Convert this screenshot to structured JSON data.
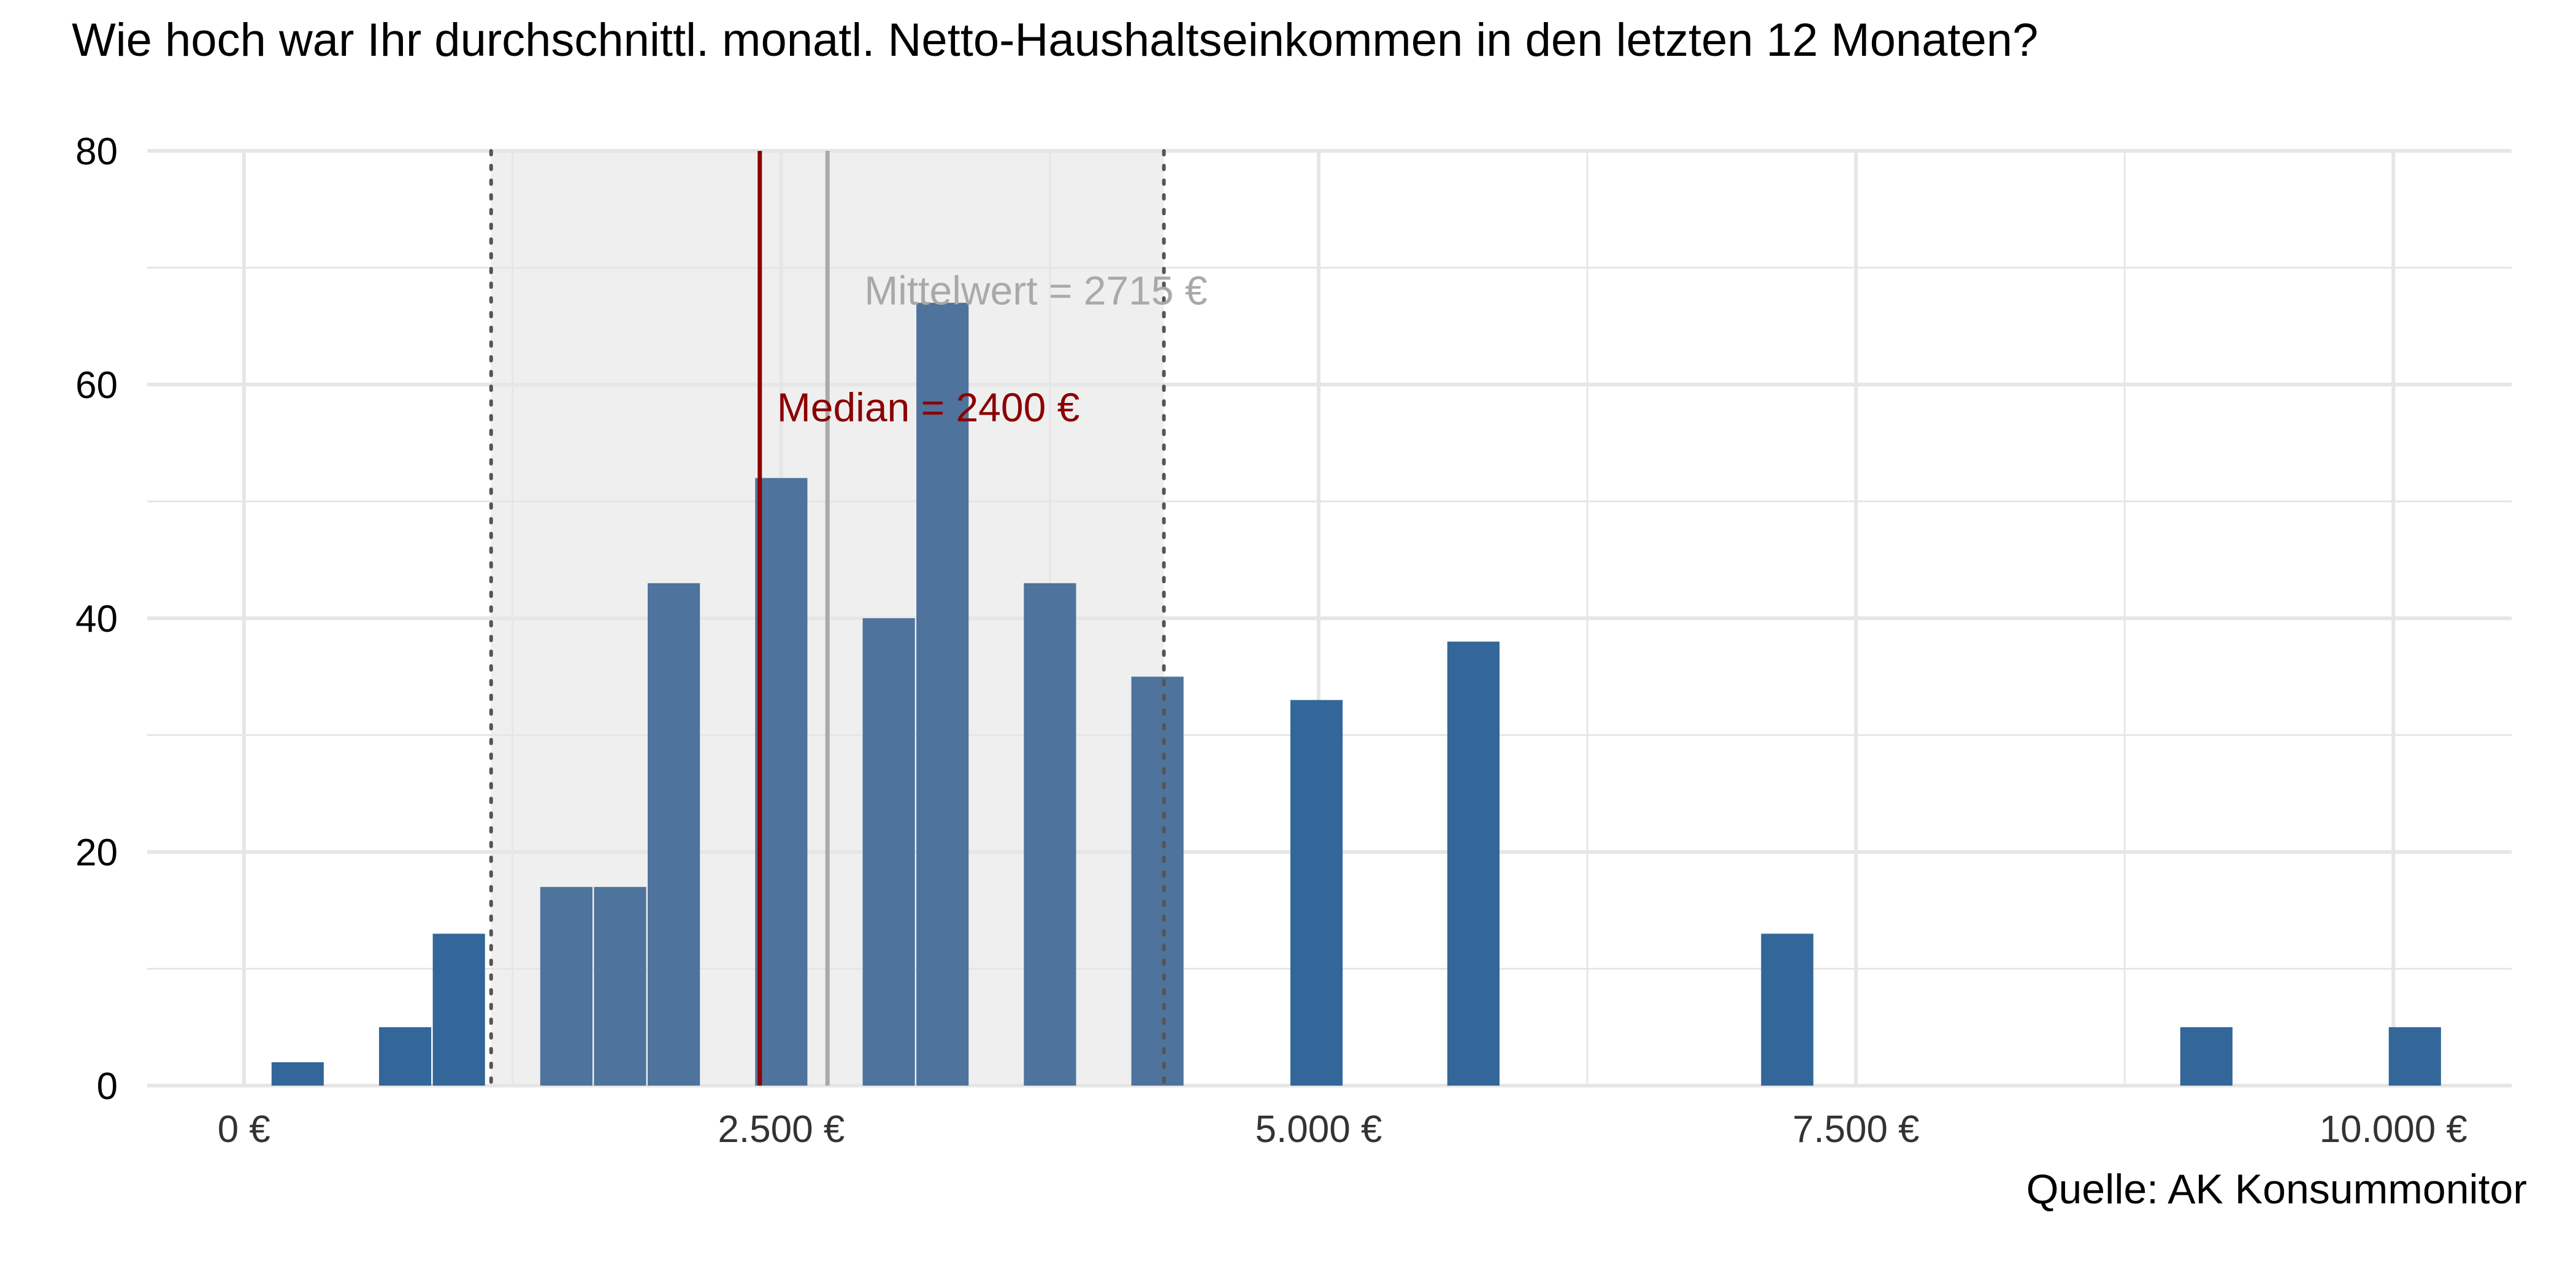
{
  "chart_data": {
    "type": "bar",
    "title": "Wie hoch war Ihr durchschnittl. monatl. Netto-Haushaltseinkommen in den letzten 12 Monaten?",
    "caption": "Quelle: AK Konsummonitor",
    "xlabel": "",
    "ylabel": "",
    "xlim": [
      -450,
      10550
    ],
    "ylim": [
      0,
      80
    ],
    "x_ticks": [
      0,
      2500,
      5000,
      7500,
      10000
    ],
    "x_tick_labels": [
      "0 €",
      "2.500 €",
      "5.000 €",
      "7.500 €",
      "10.000 €"
    ],
    "y_ticks": [
      0,
      20,
      40,
      60,
      80
    ],
    "y_tick_labels": [
      "0",
      "20",
      "40",
      "60",
      "80"
    ],
    "grid": true,
    "bin_width": 243,
    "bins": [
      {
        "x": 250,
        "value": 2
      },
      {
        "x": 750,
        "value": 5
      },
      {
        "x": 1000,
        "value": 13
      },
      {
        "x": 1500,
        "value": 17
      },
      {
        "x": 1750,
        "value": 17
      },
      {
        "x": 2000,
        "value": 43
      },
      {
        "x": 2500,
        "value": 52
      },
      {
        "x": 3000,
        "value": 40
      },
      {
        "x": 3250,
        "value": 67
      },
      {
        "x": 3750,
        "value": 43
      },
      {
        "x": 4250,
        "value": 35
      },
      {
        "x": 4990,
        "value": 33
      },
      {
        "x": 5720,
        "value": 38
      },
      {
        "x": 7180,
        "value": 13
      },
      {
        "x": 9130,
        "value": 5
      },
      {
        "x": 10100,
        "value": 5
      }
    ],
    "shaded_range": [
      1150,
      4280
    ],
    "reference_lines": [
      {
        "value": 1150,
        "style": "dotted"
      },
      {
        "value": 4280,
        "style": "dotted"
      }
    ],
    "mean": {
      "value": 2715,
      "label": "Mittelwert = 2715 €",
      "label_y": 68
    },
    "median": {
      "value": 2400,
      "label": "Median = 2400 €",
      "label_y": 58
    },
    "colors": {
      "bar_inside": "#4e739c",
      "bar_outside": "#336699",
      "shade": "#efefef",
      "grid": "#e6e6e6",
      "mean": "#a9a9a9",
      "median": "#8b0000",
      "dotted": "#555555",
      "tick_label": "#333333"
    }
  }
}
